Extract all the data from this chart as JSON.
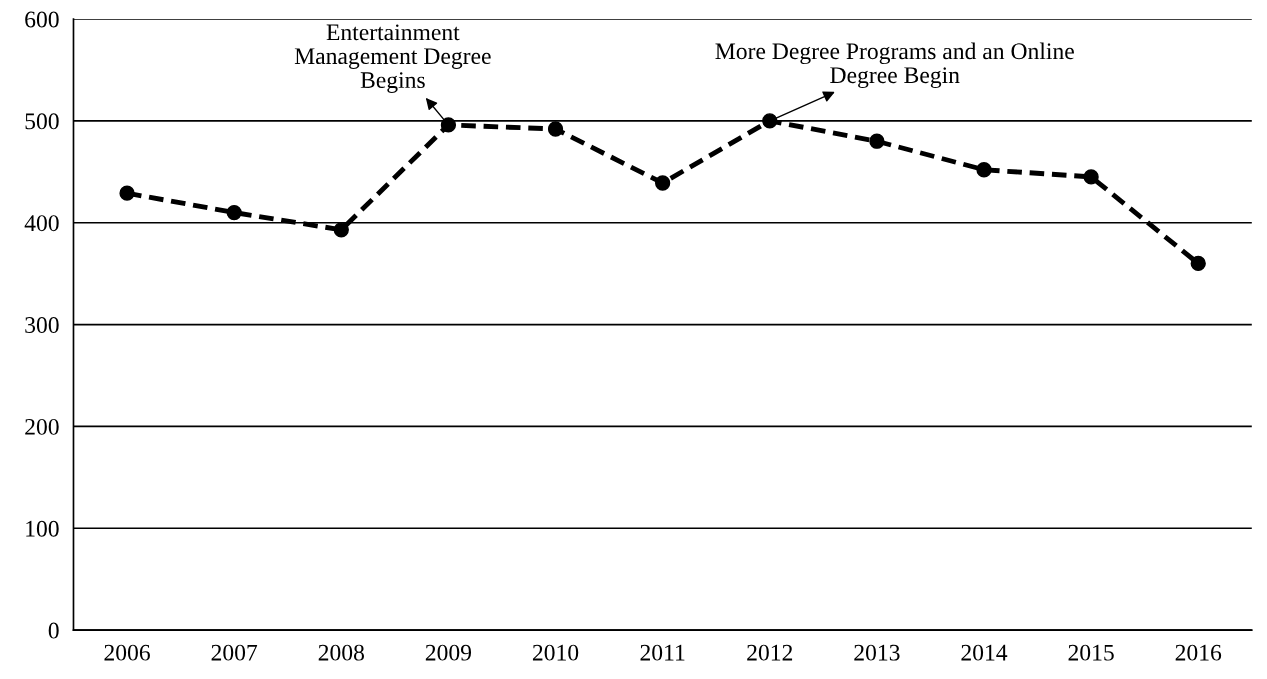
{
  "chart_data": {
    "type": "line",
    "categories": [
      "2006",
      "2007",
      "2008",
      "2009",
      "2010",
      "2011",
      "2012",
      "2013",
      "2014",
      "2015",
      "2016"
    ],
    "series": [
      {
        "color": "#000000",
        "values": [
          429,
          410,
          393,
          496,
          492,
          439,
          500,
          480,
          452,
          445,
          360
        ]
      }
    ],
    "ylim": [
      0,
      600
    ],
    "yticks": [
      0,
      100,
      200,
      300,
      400,
      500,
      600
    ],
    "grid": "y",
    "marker": "circle",
    "line_style": "dashed",
    "annotations": [
      {
        "text": "Entertainment\nManagement Degree\nBegins",
        "x": "2009",
        "y": 496
      },
      {
        "text": "More Degree Programs and an Online\nDegree Begin",
        "x": "2012",
        "y": 500
      }
    ]
  }
}
